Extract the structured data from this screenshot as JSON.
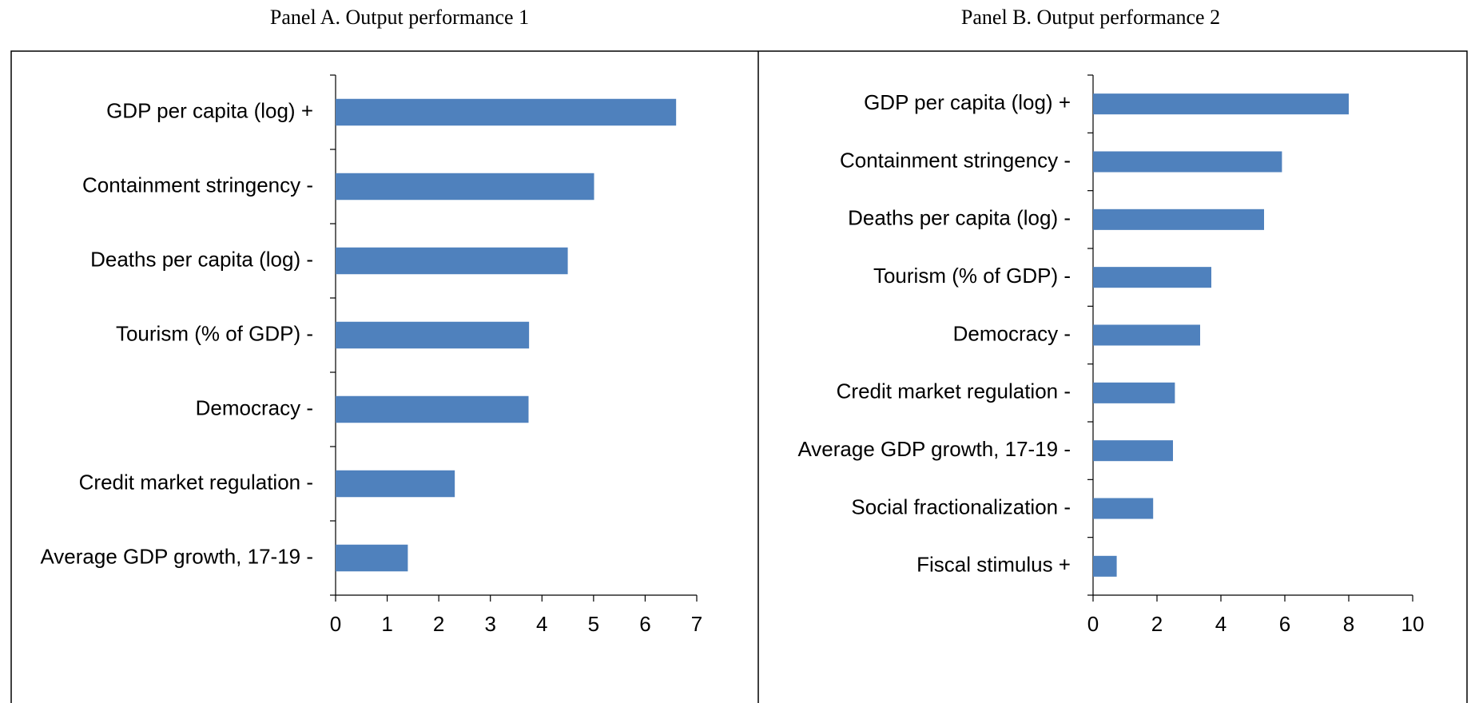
{
  "chart_data": [
    {
      "type": "bar",
      "orientation": "horizontal",
      "title": "Panel A. Output performance 1",
      "categories": [
        "GDP per capita (log) +",
        "Containment stringency -",
        "Deaths per capita (log) -",
        "Tourism (% of GDP) -",
        "Democracy -",
        "Credit market regulation -",
        "Average GDP growth, 17-19 -"
      ],
      "values": [
        6.6,
        5.01,
        4.5,
        3.75,
        3.74,
        2.31,
        1.4
      ],
      "color": "#4f81bd",
      "xlim": [
        0,
        7
      ],
      "xticks": [
        0,
        1,
        2,
        3,
        4,
        5,
        6,
        7
      ]
    },
    {
      "type": "bar",
      "orientation": "horizontal",
      "title": "Panel B. Output performance 2",
      "categories": [
        "GDP per capita (log) +",
        "Containment stringency -",
        "Deaths per capita (log) -",
        "Tourism (% of GDP) -",
        "Democracy -",
        "Credit market regulation -",
        "Average GDP growth, 17-19 -",
        "Social fractionalization -",
        "Fiscal stimulus +"
      ],
      "values": [
        8.0,
        5.91,
        5.35,
        3.7,
        3.35,
        2.56,
        2.5,
        1.88,
        0.74
      ],
      "color": "#4f81bd",
      "xlim": [
        0,
        10
      ],
      "xticks": [
        0,
        2,
        4,
        6,
        8,
        10
      ]
    }
  ]
}
